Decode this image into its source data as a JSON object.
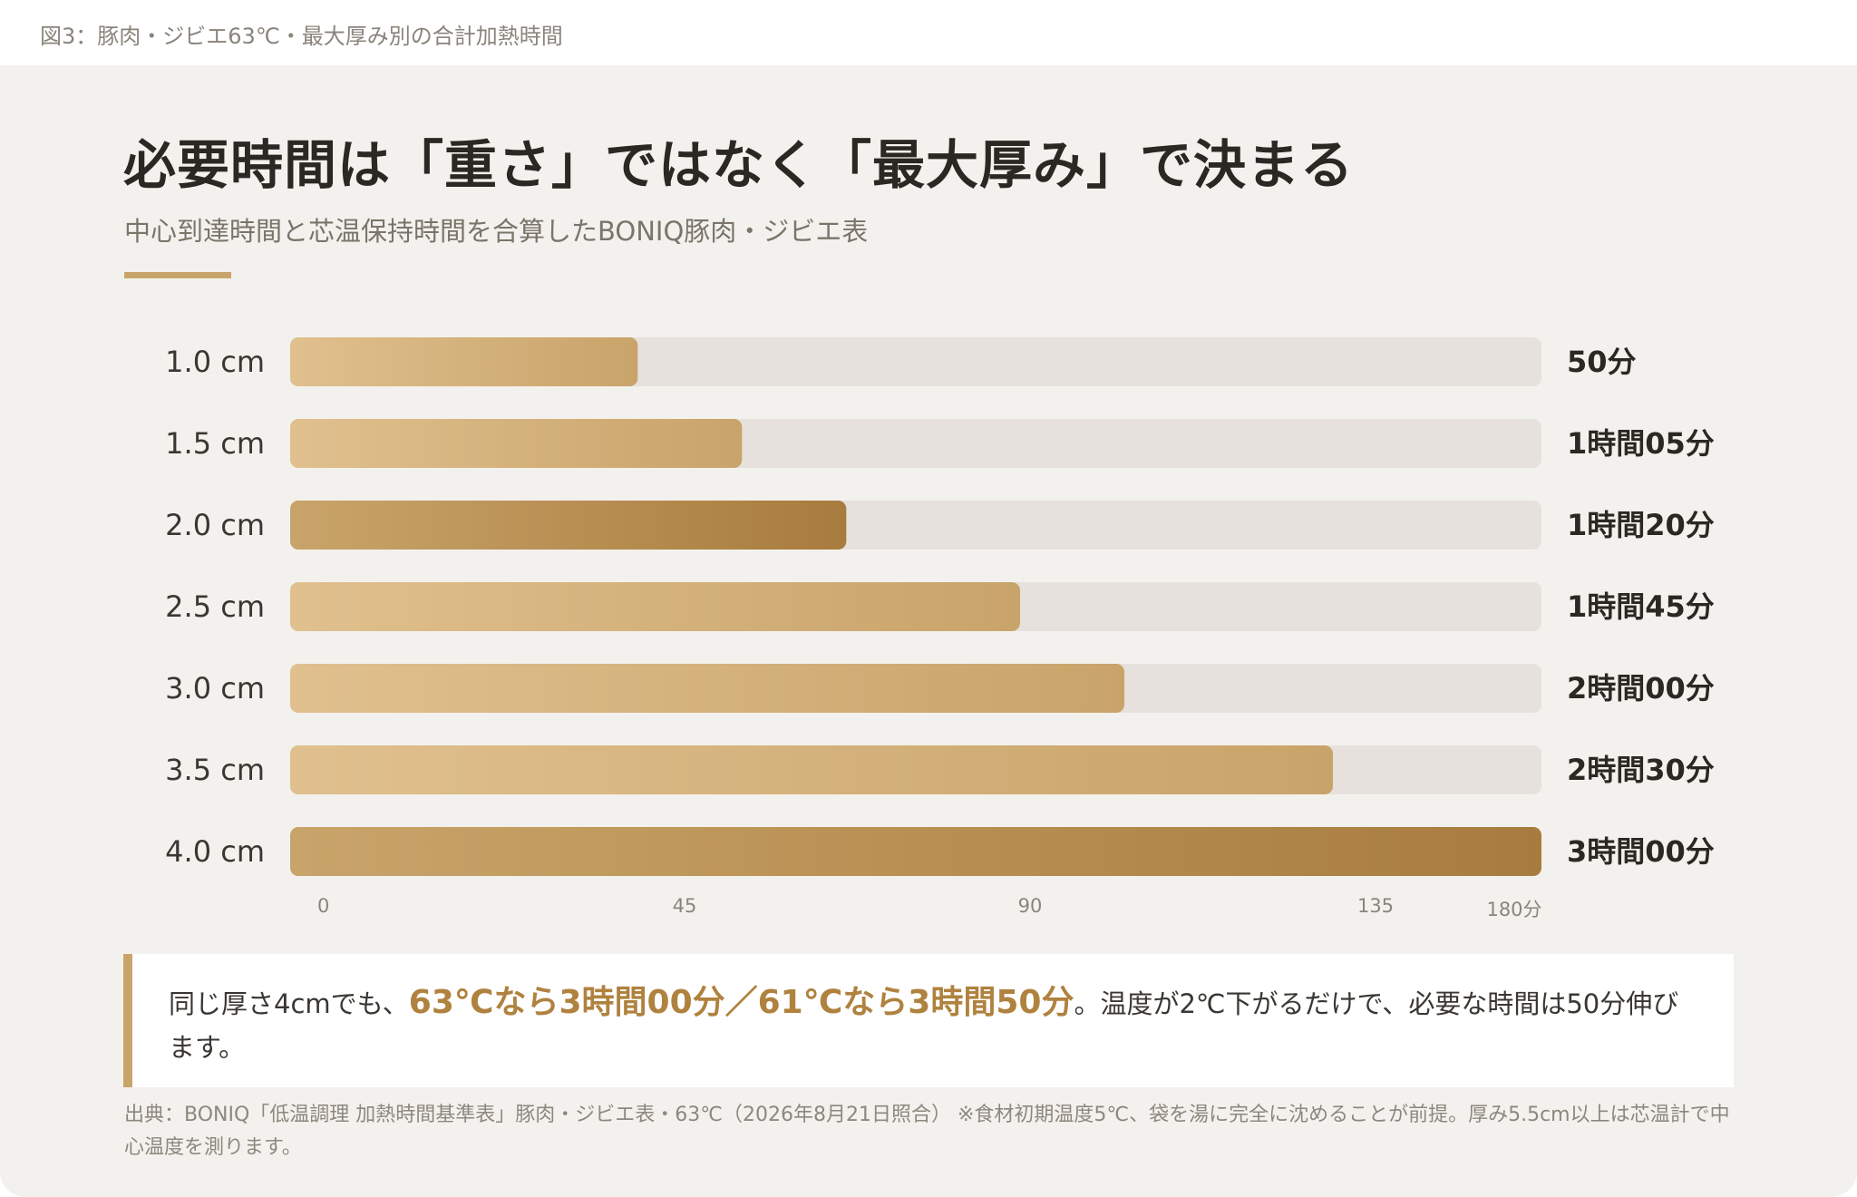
{
  "figure_label": "図3：豚肉・ジビエ63℃・最大厚み別の合計加熱時間",
  "title": "必要時間は「重さ」ではなく「最大厚み」で決まる",
  "subtitle": "中心到達時間と芯温保持時間を合算したBONIQ豚肉・ジビエ表",
  "colors": {
    "accent": "#c9a46a",
    "bar_light_start": "#e0c08e",
    "bar_light_end": "#c9a46a",
    "bar_dark_start": "#c9a46a",
    "bar_dark_end": "#a87c3e",
    "track": "#e6e1dc",
    "highlight_text": "#b0823f"
  },
  "chart_data": {
    "type": "bar",
    "orientation": "horizontal",
    "categories": [
      "1.0 cm",
      "1.5 cm",
      "2.0 cm",
      "2.5 cm",
      "3.0 cm",
      "3.5 cm",
      "4.0 cm"
    ],
    "values": [
      50,
      65,
      80,
      105,
      120,
      150,
      180
    ],
    "value_labels": [
      "50分",
      "1時間05分",
      "1時間20分",
      "1時間45分",
      "2時間00分",
      "2時間30分",
      "3時間00分"
    ],
    "emphasized": [
      false,
      false,
      true,
      false,
      false,
      false,
      true
    ],
    "xlim": [
      0,
      180
    ],
    "x_ticks": [
      0,
      45,
      90,
      135,
      180
    ],
    "x_tick_labels": [
      "0",
      "45",
      "90",
      "135",
      "180分"
    ],
    "grid": false,
    "legend": "none"
  },
  "callout": {
    "before": "同じ厚さ4cmでも、",
    "highlight": "63℃なら3時間00分／61℃なら3時間50分",
    "after": "。温度が2℃下がるだけで、必要な時間は50分伸びます。"
  },
  "source_note": "出典：BONIQ「低温調理 加熱時間基準表」豚肉・ジビエ表・63℃（2026年8月21日照合） ※食材初期温度5℃、袋を湯に完全に沈めることが前提。厚み5.5cm以上は芯温計で中心温度を測ります。"
}
